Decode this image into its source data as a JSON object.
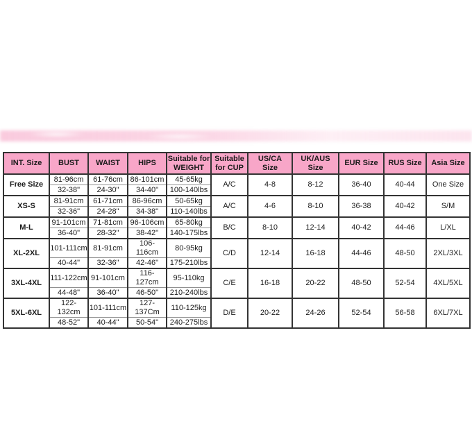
{
  "page": {
    "background": "#ffffff",
    "accent_pink": "#F8A6C8",
    "border_color": "#333333",
    "sub_divider_color": "#909090"
  },
  "watermark": {
    "description": "faint blurred pink band",
    "color": "#F6A8C8"
  },
  "table": {
    "header_bg": "#F8A6C8",
    "columns": [
      {
        "key": "int-size",
        "label": "INT. Size"
      },
      {
        "key": "bust",
        "label": "BUST"
      },
      {
        "key": "waist",
        "label": "WAIST"
      },
      {
        "key": "hips",
        "label": "HIPS"
      },
      {
        "key": "weight",
        "label": "Suitable for\nWEIGHT"
      },
      {
        "key": "cup",
        "label": "Suitable\nfor CUP"
      },
      {
        "key": "us-ca",
        "label": "US/CA\nSize"
      },
      {
        "key": "uk-aus",
        "label": "UK/AUS\nSize"
      },
      {
        "key": "eur",
        "label": "EUR Size"
      },
      {
        "key": "rus",
        "label": "RUS Size"
      },
      {
        "key": "asia",
        "label": "Asia Size"
      }
    ],
    "rows": [
      {
        "int_size": "Free Size",
        "bust": [
          "81-96cm",
          "32-38\""
        ],
        "waist": [
          "61-76cm",
          "24-30\""
        ],
        "hips": [
          "86-101cm",
          "34-40\""
        ],
        "weight": [
          "45-65kg",
          "100-140lbs"
        ],
        "cup": "A/C",
        "us_ca": "4-8",
        "uk_aus": "8-12",
        "eur": "36-40",
        "rus": "40-44",
        "asia": "One Size"
      },
      {
        "int_size": "XS-S",
        "bust": [
          "81-91cm",
          "32-36\""
        ],
        "waist": [
          "61-71cm",
          "24-28\""
        ],
        "hips": [
          "86-96cm",
          "34-38\""
        ],
        "weight": [
          "50-65kg",
          "110-140lbs"
        ],
        "cup": "A/C",
        "us_ca": "4-6",
        "uk_aus": "8-10",
        "eur": "36-38",
        "rus": "40-42",
        "asia": "S/M"
      },
      {
        "int_size": "M-L",
        "bust": [
          "91-101cm",
          "36-40\""
        ],
        "waist": [
          "71-81cm",
          "28-32\""
        ],
        "hips": [
          "96-106cm",
          "38-42\""
        ],
        "weight": [
          "65-80kg",
          "140-175lbs"
        ],
        "cup": "B/C",
        "us_ca": "8-10",
        "uk_aus": "12-14",
        "eur": "40-42",
        "rus": "44-46",
        "asia": "L/XL"
      },
      {
        "int_size": "XL-2XL",
        "bust": [
          "101-111cm",
          "40-44\""
        ],
        "waist": [
          "81-91cm",
          "32-36\""
        ],
        "hips": [
          "106-116cm",
          "42-46\""
        ],
        "weight": [
          "80-95kg",
          "175-210lbs"
        ],
        "cup": "C/D",
        "us_ca": "12-14",
        "uk_aus": "16-18",
        "eur": "44-46",
        "rus": "48-50",
        "asia": "2XL/3XL"
      },
      {
        "int_size": "3XL-4XL",
        "bust": [
          "111-122cm",
          "44-48\""
        ],
        "waist": [
          "91-101cm",
          "36-40\""
        ],
        "hips": [
          "116-127cm",
          "46-50\""
        ],
        "weight": [
          "95-110kg",
          "210-240lbs"
        ],
        "cup": "C/E",
        "us_ca": "16-18",
        "uk_aus": "20-22",
        "eur": "48-50",
        "rus": "52-54",
        "asia": "4XL/5XL"
      },
      {
        "int_size": "5XL-6XL",
        "bust": [
          "122-132cm",
          "48-52\""
        ],
        "waist": [
          "101-111cm",
          "40-44\""
        ],
        "hips": [
          "127-137Cm",
          "50-54\""
        ],
        "weight": [
          "110-125kg",
          "240-275lbs"
        ],
        "cup": "D/E",
        "us_ca": "20-22",
        "uk_aus": "24-26",
        "eur": "52-54",
        "rus": "56-58",
        "asia": "6XL/7XL"
      }
    ]
  }
}
